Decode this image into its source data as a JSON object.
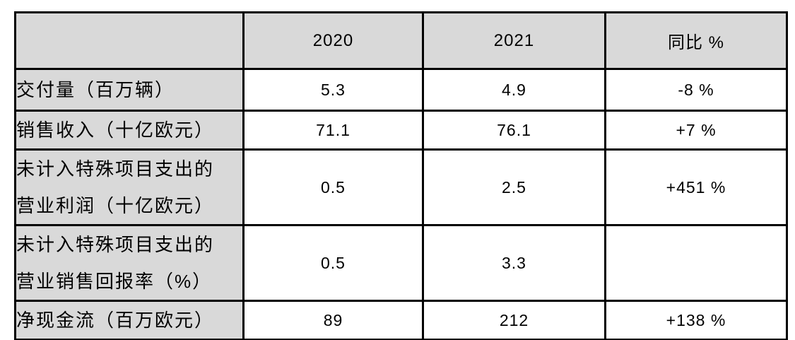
{
  "chart_data": {
    "type": "table",
    "title": "",
    "header": [
      "",
      "2020",
      "2021",
      "同比 %"
    ],
    "rows": [
      [
        "交付量（百万辆）",
        "5.3",
        "4.9",
        "-8 %"
      ],
      [
        "销售收入（十亿欧元）",
        "71.1",
        "76.1",
        "+7 %"
      ],
      [
        "未计入特殊项目支出的\n营业利润（十亿欧元）",
        "0.5",
        "2.5",
        "+451 %"
      ],
      [
        "未计入特殊项目支出的\n营业销售回报率（%）",
        "0.5",
        "3.3",
        ""
      ],
      [
        "净现金流（百万欧元）",
        "89",
        "212",
        "+138 %"
      ]
    ],
    "colors": {
      "header_bg": "#d9d9d9",
      "label_column_bg": "#d9d9d9",
      "data_cell_bg": "#ffffff",
      "border": "#000000",
      "text": "#000000",
      "page_bg": "#ffffff"
    }
  }
}
